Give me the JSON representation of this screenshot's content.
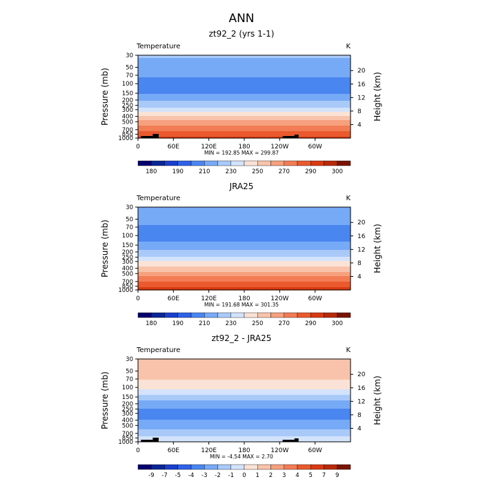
{
  "page_title": "ANN",
  "colors": {
    "abs": [
      "#08006e",
      "#0a2696",
      "#1a3fcc",
      "#2e62ea",
      "#4a86f0",
      "#77aaf6",
      "#a9caf9",
      "#d3e3fb",
      "#fbe2d6",
      "#f9c3ab",
      "#f6a07e",
      "#f27c54",
      "#ea5a2e",
      "#d93a12",
      "#b82a0a",
      "#7a1400"
    ],
    "diff": [
      "#08006e",
      "#0a2696",
      "#1a3fcc",
      "#2e62ea",
      "#4a86f0",
      "#77aaf6",
      "#a9caf9",
      "#d3e3fb",
      "#fbe2d6",
      "#f9c3ab",
      "#f6a07e",
      "#f27c54",
      "#ea5a2e",
      "#d93a12",
      "#b82a0a",
      "#7a1400"
    ]
  },
  "chart_data": [
    {
      "type": "heatmap",
      "title": "zt92_2 (yrs 1-1)",
      "variable_label": "Temperature",
      "units": "K",
      "ylabel": "Pressure (mb)",
      "ylabel_right": "Height (km)",
      "x_ticks": [
        "0",
        "60E",
        "120E",
        "180",
        "120W",
        "60W"
      ],
      "x_tick_lon": [
        0,
        60,
        120,
        180,
        240,
        300
      ],
      "xlim": [
        0,
        360
      ],
      "y_ticks": [
        "30",
        "50",
        "70",
        "100",
        "150",
        "200",
        "250",
        "300",
        "400",
        "500",
        "700",
        "850",
        "1000"
      ],
      "y_tick_values": [
        30,
        50,
        70,
        100,
        150,
        200,
        250,
        300,
        400,
        500,
        700,
        850,
        1000
      ],
      "ylim": [
        30,
        1000
      ],
      "y_scale": "log",
      "height_ticks": [
        "20",
        "16",
        "12",
        "8",
        "4"
      ],
      "height_values": [
        20,
        16,
        12,
        8,
        4
      ],
      "stats": "MIN = 192.85   MAX = 299.87",
      "min": 192.85,
      "max": 299.87,
      "colorbar_labels": [
        "180",
        "190",
        "210",
        "230",
        "250",
        "270",
        "290",
        "300"
      ],
      "levels": [
        175,
        180,
        185,
        190,
        200,
        210,
        220,
        230,
        240,
        250,
        260,
        270,
        280,
        290,
        295,
        300,
        305
      ],
      "profile": {
        "pressure": [
          30,
          50,
          70,
          100,
          150,
          200,
          250,
          300,
          400,
          500,
          700,
          850,
          1000
        ],
        "values": [
          222,
          215,
          211,
          206,
          210,
          219,
          226,
          235,
          250,
          263,
          278,
          286,
          292
        ]
      },
      "topography": true
    },
    {
      "type": "heatmap",
      "title": "JRA25",
      "variable_label": "Temperature",
      "units": "K",
      "ylabel": "Pressure (mb)",
      "ylabel_right": "Height (km)",
      "x_ticks": [
        "0",
        "60E",
        "120E",
        "180",
        "120W",
        "60W"
      ],
      "x_tick_lon": [
        0,
        60,
        120,
        180,
        240,
        300
      ],
      "xlim": [
        0,
        360
      ],
      "y_ticks": [
        "30",
        "50",
        "70",
        "100",
        "150",
        "200",
        "250",
        "300",
        "400",
        "500",
        "700",
        "850",
        "1000"
      ],
      "y_tick_values": [
        30,
        50,
        70,
        100,
        150,
        200,
        250,
        300,
        400,
        500,
        700,
        850,
        1000
      ],
      "ylim": [
        30,
        1000
      ],
      "y_scale": "log",
      "height_ticks": [
        "20",
        "16",
        "12",
        "8",
        "4"
      ],
      "height_values": [
        20,
        16,
        12,
        8,
        4
      ],
      "stats": "MIN = 191.68   MAX = 301.35",
      "min": 191.68,
      "max": 301.35,
      "colorbar_labels": [
        "180",
        "190",
        "210",
        "230",
        "250",
        "270",
        "290",
        "300"
      ],
      "levels": [
        175,
        180,
        185,
        190,
        200,
        210,
        220,
        230,
        240,
        250,
        260,
        270,
        280,
        290,
        295,
        300,
        305
      ],
      "profile": {
        "pressure": [
          30,
          50,
          70,
          100,
          150,
          200,
          250,
          300,
          400,
          500,
          700,
          850,
          1000
        ],
        "values": [
          220,
          213,
          209,
          207,
          212,
          222,
          232,
          240,
          253,
          265,
          279,
          288,
          294
        ]
      },
      "topography": false
    },
    {
      "type": "heatmap",
      "title": "zt92_2 - JRA25",
      "variable_label": "Temperature",
      "units": "K",
      "ylabel": "Pressure (mb)",
      "ylabel_right": "Height (km)",
      "x_ticks": [
        "0",
        "60E",
        "120E",
        "180",
        "120W",
        "60W"
      ],
      "x_tick_lon": [
        0,
        60,
        120,
        180,
        240,
        300
      ],
      "xlim": [
        0,
        360
      ],
      "y_ticks": [
        "30",
        "50",
        "70",
        "100",
        "150",
        "200",
        "250",
        "300",
        "400",
        "500",
        "700",
        "850",
        "1000"
      ],
      "y_tick_values": [
        30,
        50,
        70,
        100,
        150,
        200,
        250,
        300,
        400,
        500,
        700,
        850,
        1000
      ],
      "ylim": [
        30,
        1000
      ],
      "y_scale": "log",
      "height_ticks": [
        "20",
        "16",
        "12",
        "8",
        "4"
      ],
      "height_values": [
        20,
        16,
        12,
        8,
        4
      ],
      "stats": "MIN =   -4.54   MAX =    2.70",
      "min": -4.54,
      "max": 2.7,
      "colorbar_labels": [
        "-9",
        "-7",
        "-5",
        "-4",
        "-3",
        "-2",
        "-1",
        "0",
        "1",
        "2",
        "3",
        "4",
        "5",
        "7",
        "9"
      ],
      "levels": [
        -11,
        -9,
        -7,
        -5,
        -4,
        -3,
        -2,
        -1,
        0,
        1,
        2,
        3,
        4,
        5,
        7,
        9,
        11
      ],
      "profile": {
        "pressure": [
          30,
          50,
          70,
          100,
          150,
          200,
          250,
          300,
          400,
          500,
          700,
          850,
          1000
        ],
        "values": [
          1.6,
          1.3,
          1.1,
          0.4,
          -1.5,
          -2.4,
          -3.0,
          -3.4,
          -3.0,
          -2.4,
          -1.5,
          -0.6,
          -0.3
        ]
      },
      "topography": true
    }
  ]
}
